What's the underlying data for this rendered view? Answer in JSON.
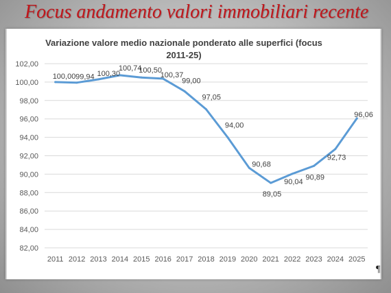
{
  "slide": {
    "title": "Focus andamento valori immobiliari recente",
    "pilcrow": "¶"
  },
  "chart_data": {
    "type": "line",
    "title": "Variazione valore medio nazionale ponderato alle superfici (focus 2011-25)",
    "xlabel": "",
    "ylabel": "",
    "x": [
      "2011",
      "2012",
      "2013",
      "2014",
      "2015",
      "2016",
      "2017",
      "2018",
      "2019",
      "2020",
      "2021",
      "2022",
      "2023",
      "2024",
      "2025"
    ],
    "series": [
      {
        "values": [
          100.0,
          99.94,
          100.3,
          100.74,
          100.5,
          100.37,
          99.0,
          97.05,
          94.0,
          90.68,
          89.05,
          90.04,
          90.89,
          92.73,
          96.06
        ],
        "labels": [
          "100,00",
          "99,94",
          "100,30",
          "100,74",
          "100,50",
          "100,37",
          "99,00",
          "97,05",
          "94,00",
          "90,68",
          "89,05",
          "90,04",
          "90,89",
          "92,73",
          "96,06"
        ]
      }
    ],
    "ylim": [
      82,
      102
    ],
    "yticks": [
      "82,00",
      "84,00",
      "86,00",
      "88,00",
      "90,00",
      "92,00",
      "94,00",
      "96,00",
      "98,00",
      "100,00",
      "102,00"
    ],
    "grid": true,
    "line_color": "#5b9bd5"
  }
}
